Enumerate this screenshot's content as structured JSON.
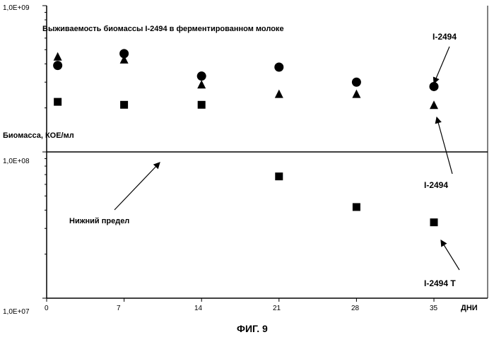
{
  "chart_data": {
    "type": "scatter",
    "title": "Выживаемость биомассы I-2494 в ферментированном молоке",
    "ylabel": "Биомасса, КОЕ/мл",
    "xlabel": "ДНИ",
    "y_scale": "log",
    "ylim": [
      10000000,
      1000000000
    ],
    "xlim": [
      0,
      40
    ],
    "y_tick_labels": [
      "1,0E+07",
      "1,0E+08",
      "1,0E+09"
    ],
    "x_ticks": [
      0,
      7,
      14,
      21,
      28,
      35
    ],
    "x_tick_labels": [
      "0",
      "7",
      "14",
      "21",
      "28",
      "35"
    ],
    "series": [
      {
        "name": "I-2494",
        "marker": "circle",
        "x": [
          1,
          7,
          14,
          21,
          28,
          35
        ],
        "y": [
          390000000,
          470000000,
          330000000,
          380000000,
          300000000,
          280000000
        ]
      },
      {
        "name": "I-2494",
        "marker": "triangle",
        "x": [
          1,
          7,
          14,
          21,
          28,
          35
        ],
        "y": [
          450000000,
          430000000,
          290000000,
          250000000,
          250000000,
          210000000
        ]
      },
      {
        "name": "I-2494 T",
        "marker": "square",
        "x": [
          1,
          7,
          14,
          21,
          28,
          35
        ],
        "y": [
          220000000,
          210000000,
          210000000,
          68000000,
          42000000,
          33000000
        ]
      }
    ],
    "reference_line": {
      "label": "Нижний предел",
      "y": 100000000
    },
    "legend": "annotations with arrows",
    "grid": false,
    "figure_caption": "ФИГ. 9"
  }
}
